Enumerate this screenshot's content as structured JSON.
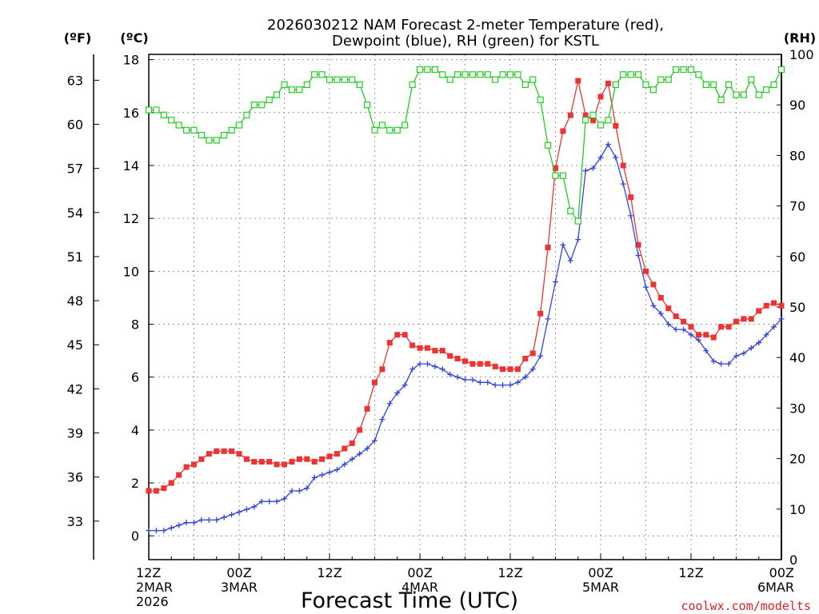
{
  "chart_data": {
    "type": "line",
    "title_line1": "2026030212 NAM Forecast 2-meter Temperature (red),",
    "title_line2": "Dewpoint (blue), RH (green) for KSTL",
    "xlabel": "Forecast Time (UTC)",
    "credit": "coolwx.com/modelts",
    "left_axis_f_label": "(ºF)",
    "left_axis_c_label": "(ºC)",
    "right_axis_label": "(RH)",
    "time_range_hours": [
      0,
      84
    ],
    "x_ticks": [
      {
        "hour": 0,
        "lines": [
          "12Z",
          "2MAR",
          "2026"
        ]
      },
      {
        "hour": 12,
        "lines": [
          "00Z",
          "3MAR"
        ]
      },
      {
        "hour": 24,
        "lines": [
          "12Z"
        ]
      },
      {
        "hour": 36,
        "lines": [
          "00Z",
          "4MAR"
        ]
      },
      {
        "hour": 48,
        "lines": [
          "12Z"
        ]
      },
      {
        "hour": 60,
        "lines": [
          "00Z",
          "5MAR"
        ]
      },
      {
        "hour": 72,
        "lines": [
          "12Z"
        ]
      },
      {
        "hour": 84,
        "lines": [
          "00Z",
          "6MAR"
        ]
      }
    ],
    "celsius_ylim": [
      -0.9,
      18.2
    ],
    "celsius_ticks": [
      0,
      2,
      4,
      6,
      8,
      10,
      12,
      14,
      16,
      18
    ],
    "fahrenheit_ticks": [
      33,
      36,
      39,
      42,
      45,
      48,
      51,
      54,
      57,
      60,
      63
    ],
    "rh_ylim": [
      0,
      100
    ],
    "rh_ticks": [
      0,
      10,
      20,
      30,
      40,
      50,
      60,
      70,
      80,
      90,
      100
    ],
    "series": [
      {
        "name": "Temperature",
        "unit": "°C",
        "color": "#ee3333",
        "marker": "filled-square",
        "points": [
          [
            0,
            1.7
          ],
          [
            1,
            1.7
          ],
          [
            2,
            1.8
          ],
          [
            3,
            2.0
          ],
          [
            4,
            2.3
          ],
          [
            5,
            2.6
          ],
          [
            6,
            2.7
          ],
          [
            7,
            2.9
          ],
          [
            8,
            3.1
          ],
          [
            9,
            3.2
          ],
          [
            10,
            3.2
          ],
          [
            11,
            3.2
          ],
          [
            12,
            3.1
          ],
          [
            13,
            2.9
          ],
          [
            14,
            2.8
          ],
          [
            15,
            2.8
          ],
          [
            16,
            2.8
          ],
          [
            17,
            2.7
          ],
          [
            18,
            2.7
          ],
          [
            19,
            2.8
          ],
          [
            20,
            2.9
          ],
          [
            21,
            2.9
          ],
          [
            22,
            2.8
          ],
          [
            23,
            2.9
          ],
          [
            24,
            3.0
          ],
          [
            25,
            3.1
          ],
          [
            26,
            3.3
          ],
          [
            27,
            3.5
          ],
          [
            28,
            4.0
          ],
          [
            29,
            4.8
          ],
          [
            30,
            5.8
          ],
          [
            31,
            6.3
          ],
          [
            32,
            7.3
          ],
          [
            33,
            7.6
          ],
          [
            34,
            7.6
          ],
          [
            35,
            7.2
          ],
          [
            36,
            7.1
          ],
          [
            37,
            7.1
          ],
          [
            38,
            7.0
          ],
          [
            39,
            7.0
          ],
          [
            40,
            6.8
          ],
          [
            41,
            6.7
          ],
          [
            42,
            6.6
          ],
          [
            43,
            6.5
          ],
          [
            44,
            6.5
          ],
          [
            45,
            6.5
          ],
          [
            46,
            6.4
          ],
          [
            47,
            6.3
          ],
          [
            48,
            6.3
          ],
          [
            49,
            6.3
          ],
          [
            50,
            6.7
          ],
          [
            51,
            6.9
          ],
          [
            52,
            8.4
          ],
          [
            53,
            10.9
          ],
          [
            54,
            13.9
          ],
          [
            55,
            15.3
          ],
          [
            56,
            15.9
          ],
          [
            57,
            17.2
          ],
          [
            58,
            15.9
          ],
          [
            59,
            15.7
          ],
          [
            60,
            16.6
          ],
          [
            61,
            17.1
          ],
          [
            62,
            15.5
          ],
          [
            63,
            14.0
          ],
          [
            64,
            12.8
          ],
          [
            65,
            11.0
          ],
          [
            66,
            10.0
          ],
          [
            67,
            9.5
          ],
          [
            68,
            9.0
          ],
          [
            69,
            8.6
          ],
          [
            70,
            8.3
          ],
          [
            71,
            8.1
          ],
          [
            72,
            7.9
          ],
          [
            73,
            7.6
          ],
          [
            74,
            7.6
          ],
          [
            75,
            7.5
          ],
          [
            76,
            7.9
          ],
          [
            77,
            7.9
          ],
          [
            78,
            8.1
          ],
          [
            79,
            8.2
          ],
          [
            80,
            8.2
          ],
          [
            81,
            8.5
          ],
          [
            82,
            8.7
          ],
          [
            83,
            8.8
          ],
          [
            84,
            8.7
          ]
        ]
      },
      {
        "name": "Dewpoint",
        "unit": "°C",
        "color": "#3344dd",
        "marker": "plus",
        "points": [
          [
            0,
            0.2
          ],
          [
            1,
            0.2
          ],
          [
            2,
            0.2
          ],
          [
            3,
            0.3
          ],
          [
            4,
            0.4
          ],
          [
            5,
            0.5
          ],
          [
            6,
            0.5
          ],
          [
            7,
            0.6
          ],
          [
            8,
            0.6
          ],
          [
            9,
            0.6
          ],
          [
            10,
            0.7
          ],
          [
            11,
            0.8
          ],
          [
            12,
            0.9
          ],
          [
            13,
            1.0
          ],
          [
            14,
            1.1
          ],
          [
            15,
            1.3
          ],
          [
            16,
            1.3
          ],
          [
            17,
            1.3
          ],
          [
            18,
            1.4
          ],
          [
            19,
            1.7
          ],
          [
            20,
            1.7
          ],
          [
            21,
            1.8
          ],
          [
            22,
            2.2
          ],
          [
            23,
            2.3
          ],
          [
            24,
            2.4
          ],
          [
            25,
            2.5
          ],
          [
            26,
            2.7
          ],
          [
            27,
            2.9
          ],
          [
            28,
            3.1
          ],
          [
            29,
            3.3
          ],
          [
            30,
            3.6
          ],
          [
            31,
            4.4
          ],
          [
            32,
            5.0
          ],
          [
            33,
            5.4
          ],
          [
            34,
            5.7
          ],
          [
            35,
            6.3
          ],
          [
            36,
            6.5
          ],
          [
            37,
            6.5
          ],
          [
            38,
            6.4
          ],
          [
            39,
            6.3
          ],
          [
            40,
            6.1
          ],
          [
            41,
            6.0
          ],
          [
            42,
            5.9
          ],
          [
            43,
            5.9
          ],
          [
            44,
            5.8
          ],
          [
            45,
            5.8
          ],
          [
            46,
            5.7
          ],
          [
            47,
            5.7
          ],
          [
            48,
            5.7
          ],
          [
            49,
            5.8
          ],
          [
            50,
            6.0
          ],
          [
            51,
            6.3
          ],
          [
            52,
            6.8
          ],
          [
            53,
            8.2
          ],
          [
            54,
            9.6
          ],
          [
            55,
            11.0
          ],
          [
            56,
            10.4
          ],
          [
            57,
            11.2
          ],
          [
            58,
            13.8
          ],
          [
            59,
            13.9
          ],
          [
            60,
            14.3
          ],
          [
            61,
            14.8
          ],
          [
            62,
            14.3
          ],
          [
            63,
            13.3
          ],
          [
            64,
            12.1
          ],
          [
            65,
            10.6
          ],
          [
            66,
            9.4
          ],
          [
            67,
            8.7
          ],
          [
            68,
            8.4
          ],
          [
            69,
            8.0
          ],
          [
            70,
            7.8
          ],
          [
            71,
            7.8
          ],
          [
            72,
            7.6
          ],
          [
            73,
            7.4
          ],
          [
            74,
            7.0
          ],
          [
            75,
            6.6
          ],
          [
            76,
            6.5
          ],
          [
            77,
            6.5
          ],
          [
            78,
            6.8
          ],
          [
            79,
            6.9
          ],
          [
            80,
            7.1
          ],
          [
            81,
            7.3
          ],
          [
            82,
            7.6
          ],
          [
            83,
            7.9
          ],
          [
            84,
            8.2
          ]
        ]
      },
      {
        "name": "RH",
        "unit": "%",
        "color": "#22cc22",
        "marker": "open-square",
        "points": [
          [
            0,
            89
          ],
          [
            1,
            89
          ],
          [
            2,
            88
          ],
          [
            3,
            87
          ],
          [
            4,
            86
          ],
          [
            5,
            85
          ],
          [
            6,
            85
          ],
          [
            7,
            84
          ],
          [
            8,
            83
          ],
          [
            9,
            83
          ],
          [
            10,
            84
          ],
          [
            11,
            85
          ],
          [
            12,
            86
          ],
          [
            13,
            88
          ],
          [
            14,
            90
          ],
          [
            15,
            90
          ],
          [
            16,
            91
          ],
          [
            17,
            92
          ],
          [
            18,
            94
          ],
          [
            19,
            93
          ],
          [
            20,
            93
          ],
          [
            21,
            94
          ],
          [
            22,
            96
          ],
          [
            23,
            96
          ],
          [
            24,
            95
          ],
          [
            25,
            95
          ],
          [
            26,
            95
          ],
          [
            27,
            95
          ],
          [
            28,
            94
          ],
          [
            29,
            90
          ],
          [
            30,
            85
          ],
          [
            31,
            86
          ],
          [
            32,
            85
          ],
          [
            33,
            85
          ],
          [
            34,
            86
          ],
          [
            35,
            94
          ],
          [
            36,
            97
          ],
          [
            37,
            97
          ],
          [
            38,
            97
          ],
          [
            39,
            96
          ],
          [
            40,
            95
          ],
          [
            41,
            96
          ],
          [
            42,
            96
          ],
          [
            43,
            96
          ],
          [
            44,
            96
          ],
          [
            45,
            96
          ],
          [
            46,
            95
          ],
          [
            47,
            96
          ],
          [
            48,
            96
          ],
          [
            49,
            96
          ],
          [
            50,
            94
          ],
          [
            51,
            95
          ],
          [
            52,
            91
          ],
          [
            53,
            82
          ],
          [
            54,
            76
          ],
          [
            55,
            76
          ],
          [
            56,
            69
          ],
          [
            57,
            67
          ],
          [
            58,
            87
          ],
          [
            59,
            88
          ],
          [
            60,
            86
          ],
          [
            61,
            87
          ],
          [
            62,
            94
          ],
          [
            63,
            96
          ],
          [
            64,
            96
          ],
          [
            65,
            96
          ],
          [
            66,
            94
          ],
          [
            67,
            93
          ],
          [
            68,
            95
          ],
          [
            69,
            95
          ],
          [
            70,
            97
          ],
          [
            71,
            97
          ],
          [
            72,
            97
          ],
          [
            73,
            96
          ],
          [
            74,
            94
          ],
          [
            75,
            94
          ],
          [
            76,
            91
          ],
          [
            77,
            94
          ],
          [
            78,
            92
          ],
          [
            79,
            92
          ],
          [
            80,
            95
          ],
          [
            81,
            92
          ],
          [
            82,
            93
          ],
          [
            83,
            94
          ],
          [
            84,
            97
          ]
        ]
      }
    ]
  }
}
